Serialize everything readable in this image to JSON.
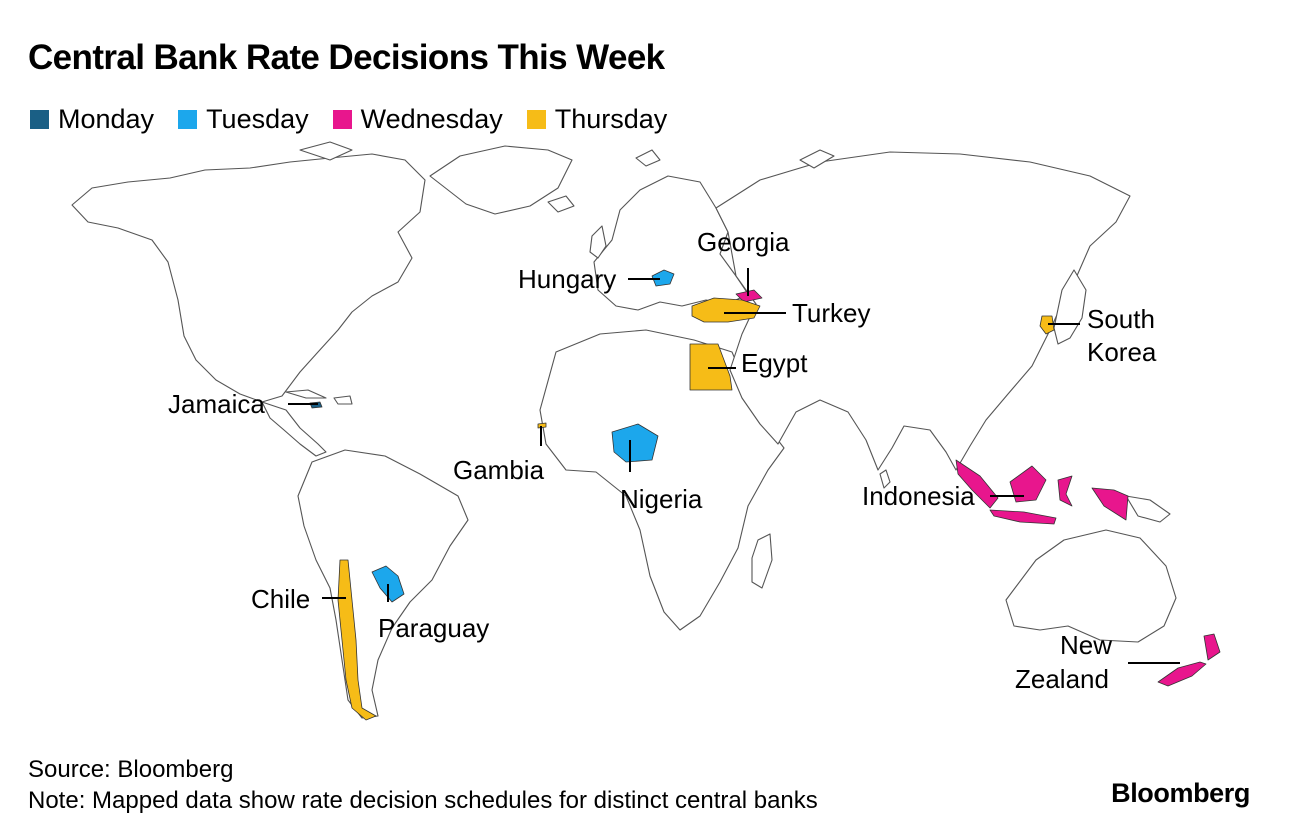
{
  "title": "Central Bank Rate Decisions This Week",
  "legend": [
    {
      "label": "Monday",
      "color": "#1a5f85"
    },
    {
      "label": "Tuesday",
      "color": "#1ca7ec"
    },
    {
      "label": "Wednesday",
      "color": "#e8168d"
    },
    {
      "label": "Thursday",
      "color": "#f6bc17"
    }
  ],
  "countries": [
    {
      "name": "Jamaica",
      "day": "Monday"
    },
    {
      "name": "Hungary",
      "day": "Tuesday"
    },
    {
      "name": "Nigeria",
      "day": "Tuesday"
    },
    {
      "name": "Paraguay",
      "day": "Tuesday"
    },
    {
      "name": "Georgia",
      "day": "Wednesday"
    },
    {
      "name": "Indonesia",
      "day": "Wednesday"
    },
    {
      "name": "New Zealand",
      "day": "Wednesday"
    },
    {
      "name": "Turkey",
      "day": "Thursday"
    },
    {
      "name": "Egypt",
      "day": "Thursday"
    },
    {
      "name": "South Korea",
      "day": "Thursday"
    },
    {
      "name": "Gambia",
      "day": "Thursday"
    },
    {
      "name": "Chile",
      "day": "Thursday"
    }
  ],
  "labels": {
    "jamaica": "Jamaica",
    "hungary": "Hungary",
    "nigeria": "Nigeria",
    "paraguay": "Paraguay",
    "georgia": "Georgia",
    "indonesia": "Indonesia",
    "new_zealand_1": "New",
    "new_zealand_2": "Zealand",
    "turkey": "Turkey",
    "egypt": "Egypt",
    "south_korea_1": "South",
    "south_korea_2": "Korea",
    "gambia": "Gambia",
    "chile": "Chile"
  },
  "source": "Source: Bloomberg",
  "note": "Note: Mapped data show rate decision schedules for distinct central banks",
  "brand": "Bloomberg"
}
